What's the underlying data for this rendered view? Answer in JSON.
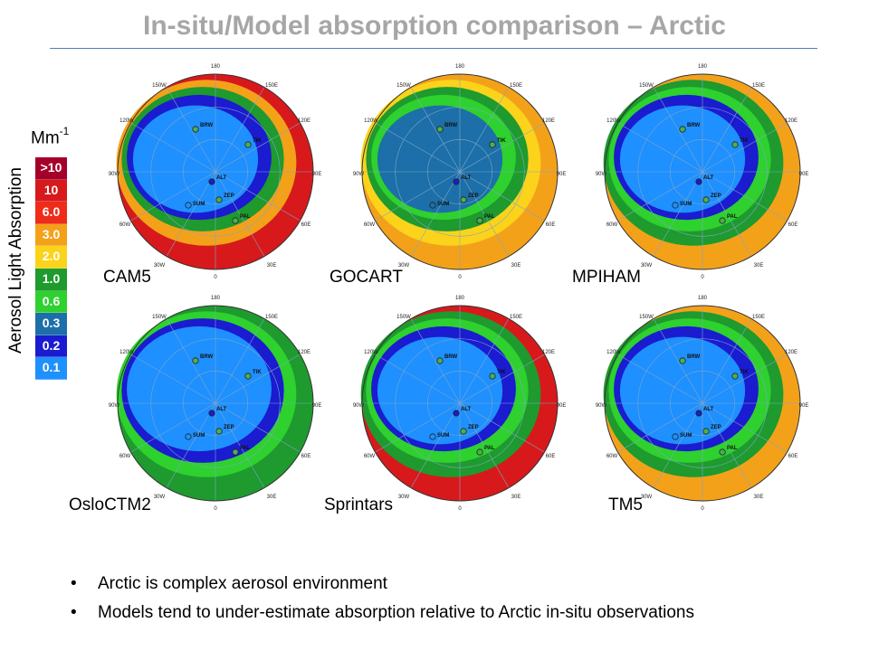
{
  "slide": {
    "title": "In-situ/Model absorption comparison – Arctic",
    "unit_base": "Mm",
    "unit_exp": "-1",
    "axis_label": "Aerosol Light Absorption",
    "legend": [
      {
        "label": ">10",
        "color": "#a5002a"
      },
      {
        "label": "10",
        "color": "#d7191c"
      },
      {
        "label": "6.0",
        "color": "#ee2c18"
      },
      {
        "label": "3.0",
        "color": "#f4a11a"
      },
      {
        "label": "2.0",
        "color": "#fbd31b"
      },
      {
        "label": "1.0",
        "color": "#1e9a2e"
      },
      {
        "label": "0.6",
        "color": "#2ed12e"
      },
      {
        "label": "0.3",
        "color": "#1c6fa8"
      },
      {
        "label": "0.2",
        "color": "#1b1bd0"
      },
      {
        "label": "0.1",
        "color": "#1e90ff"
      }
    ],
    "bullet_char": "•",
    "bullets": [
      "Arctic is complex aerosol environment",
      "Models tend to under-estimate absorption relative to Arctic in-situ observations"
    ]
  },
  "map_ticks": {
    "lon_180": "180",
    "lon_150w": "150W",
    "lon_150e": "150E",
    "lon_120w": "120W",
    "lon_120e": "120E",
    "lon_90w": "90W",
    "lon_90e": "90E",
    "lon_60w": "60W",
    "lon_60e": "60E",
    "lon_30w": "30W",
    "lon_30e": "30E",
    "lon_0": "0"
  },
  "stations": [
    "BRW",
    "TIK",
    "ALT",
    "ZEP",
    "SUM",
    "PAL"
  ],
  "panels": [
    {
      "id": "cam5",
      "label": "CAM5",
      "colors": {
        "outer": "#d7191c",
        "ring1": "#f4a11a",
        "ring2": "#1e9a2e",
        "ring3": "#1b1bd0",
        "core": "#1e90ff"
      }
    },
    {
      "id": "gocart",
      "label": "GOCART",
      "colors": {
        "outer": "#f4a11a",
        "ring1": "#fbd31b",
        "ring2": "#1e9a2e",
        "ring3": "#2ed12e",
        "core": "#1c6fa8"
      }
    },
    {
      "id": "mpiham",
      "label": "MPIHAM",
      "colors": {
        "outer": "#f4a11a",
        "ring1": "#1e9a2e",
        "ring2": "#2ed12e",
        "ring3": "#1b1bd0",
        "core": "#1e90ff"
      }
    },
    {
      "id": "oslo",
      "label": "OsloCTM2",
      "colors": {
        "outer": "#1e9a2e",
        "ring1": "#2ed12e",
        "ring2": "#1b1bd0",
        "ring3": "#1e90ff",
        "core": "#1e90ff"
      }
    },
    {
      "id": "sprintars",
      "label": "Sprintars",
      "colors": {
        "outer": "#d7191c",
        "ring1": "#1e9a2e",
        "ring2": "#2ed12e",
        "ring3": "#1b1bd0",
        "core": "#1e90ff"
      }
    },
    {
      "id": "tm5",
      "label": "TM5",
      "colors": {
        "outer": "#f4a11a",
        "ring1": "#1e9a2e",
        "ring2": "#2ed12e",
        "ring3": "#1b1bd0",
        "core": "#1e90ff"
      }
    }
  ]
}
